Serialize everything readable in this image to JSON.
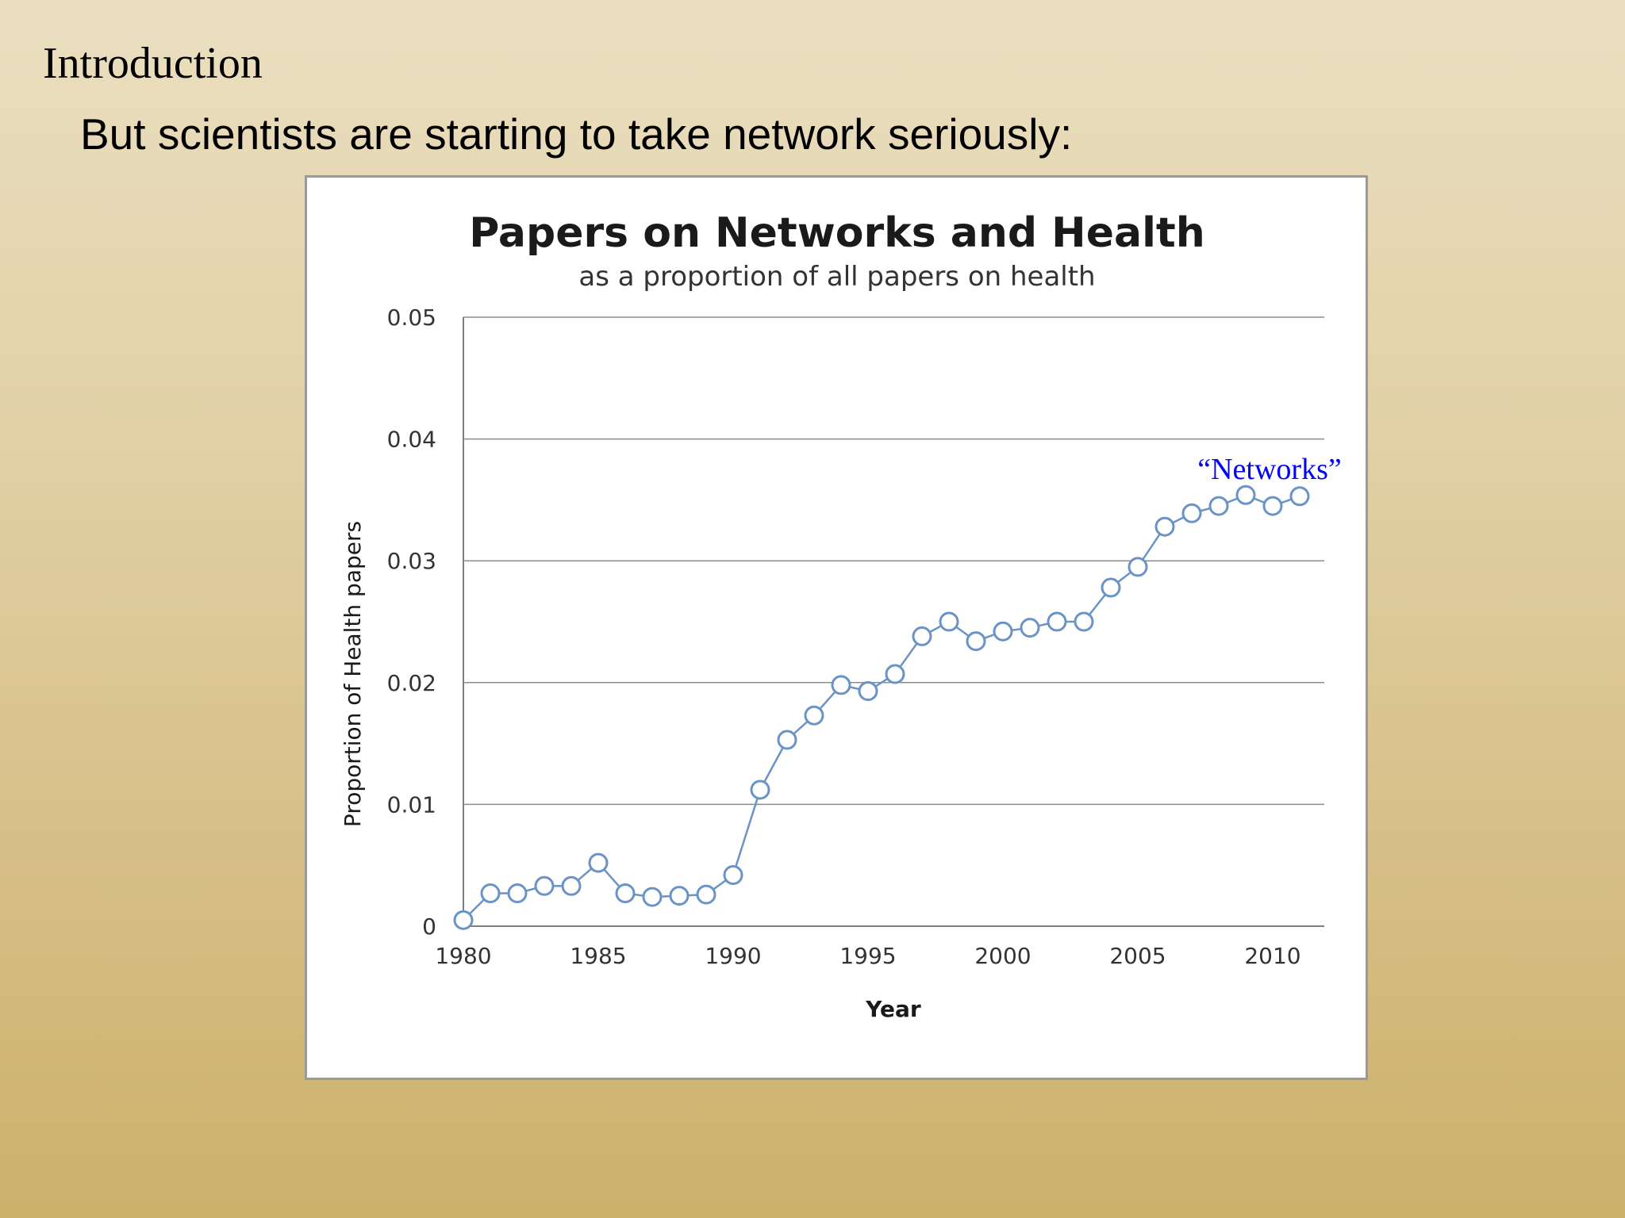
{
  "slide": {
    "heading": "Introduction",
    "subheading": "But scientists are starting to take network seriously:"
  },
  "chart_data": {
    "type": "line",
    "title": "Papers on Networks and Health",
    "subtitle": "as a proportion of all papers on health",
    "xlabel": "Year",
    "ylabel": "Proportion of Health papers",
    "xlim": [
      1980,
      2012
    ],
    "ylim": [
      0,
      0.05
    ],
    "x_ticks": [
      1980,
      1985,
      1990,
      1995,
      2000,
      2005,
      2010
    ],
    "y_ticks": [
      0,
      0.01,
      0.02,
      0.03,
      0.04,
      0.05
    ],
    "y_tick_labels": [
      "0",
      "0.01",
      "0.02",
      "0.03",
      "0.04",
      "0.05"
    ],
    "grid": true,
    "line_color": "#6a93c6",
    "series": [
      {
        "label": "“Networks”",
        "x": [
          1980,
          1981,
          1982,
          1983,
          1984,
          1985,
          1986,
          1987,
          1988,
          1989,
          1990,
          1991,
          1992,
          1993,
          1994,
          1995,
          1996,
          1997,
          1998,
          1999,
          2000,
          2001,
          2002,
          2003,
          2004,
          2005,
          2006,
          2007,
          2008,
          2009,
          2010,
          2011
        ],
        "y": [
          0.0005,
          0.0027,
          0.0027,
          0.0033,
          0.0033,
          0.0052,
          0.0027,
          0.0024,
          0.0025,
          0.0026,
          0.0042,
          0.0112,
          0.0153,
          0.0173,
          0.0198,
          0.0193,
          0.0207,
          0.0238,
          0.025,
          0.0234,
          0.0242,
          0.0245,
          0.025,
          0.025,
          0.0278,
          0.0295,
          0.0328,
          0.0339,
          0.0345,
          0.0354,
          0.0345,
          0.0353
        ]
      }
    ]
  }
}
